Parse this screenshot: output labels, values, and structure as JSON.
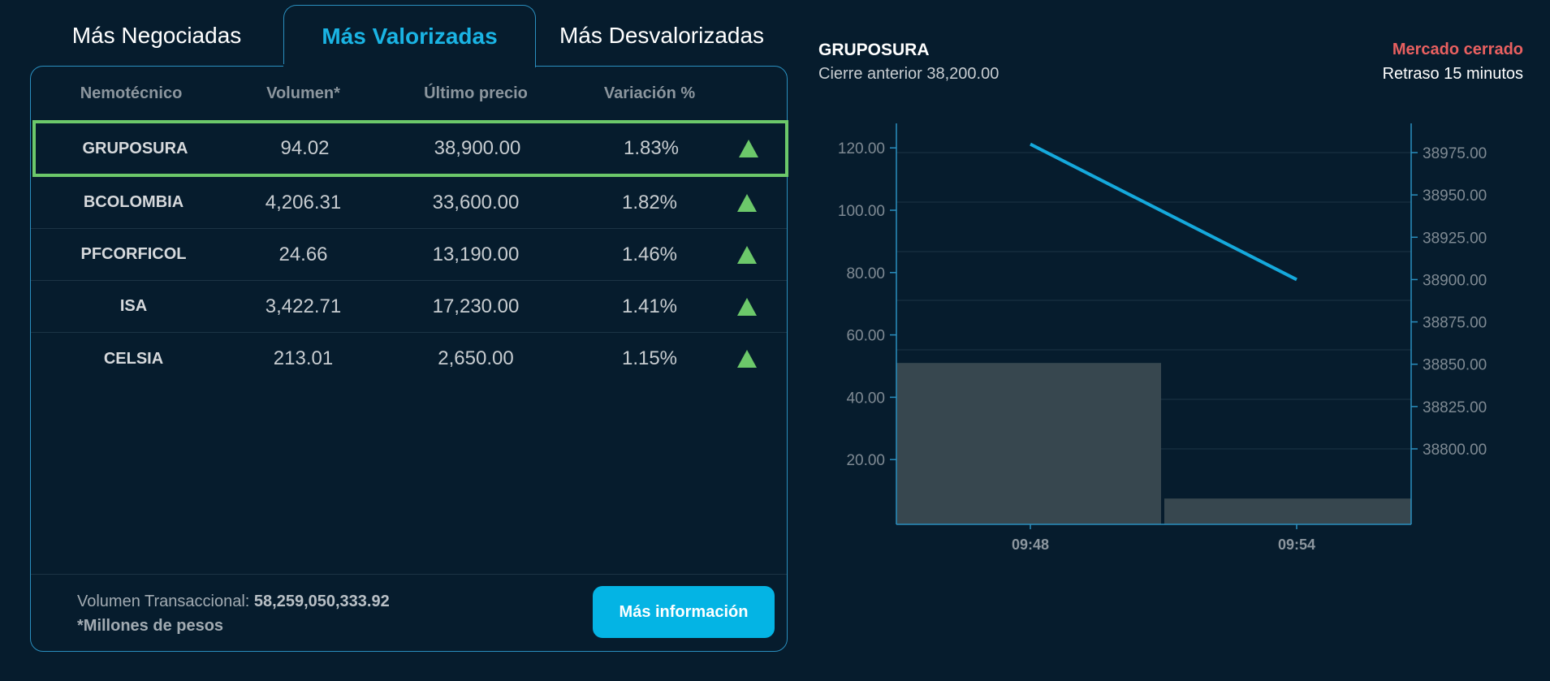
{
  "tabs": [
    {
      "label": "Más Negociadas",
      "active": false
    },
    {
      "label": "Más Valorizadas",
      "active": true
    },
    {
      "label": "Más Desvalorizadas",
      "active": false
    }
  ],
  "table": {
    "headers": [
      "Nemotécnico",
      "Volumen*",
      "Último precio",
      "Variación %"
    ],
    "rows": [
      {
        "symbol": "GRUPOSURA",
        "volume": "94.02",
        "price": "38,900.00",
        "change": "1.83%",
        "trend": "up-triangle-icon",
        "selected": true
      },
      {
        "symbol": "BCOLOMBIA",
        "volume": "4,206.31",
        "price": "33,600.00",
        "change": "1.82%",
        "trend": "up-triangle-icon",
        "selected": false
      },
      {
        "symbol": "PFCORFICOL",
        "volume": "24.66",
        "price": "13,190.00",
        "change": "1.46%",
        "trend": "up-triangle-icon",
        "selected": false
      },
      {
        "symbol": "ISA",
        "volume": "3,422.71",
        "price": "17,230.00",
        "change": "1.41%",
        "trend": "up-triangle-icon",
        "selected": false
      },
      {
        "symbol": "CELSIA",
        "volume": "213.01",
        "price": "2,650.00",
        "change": "1.15%",
        "trend": "up-triangle-icon",
        "selected": false
      }
    ]
  },
  "footer": {
    "volume_label": "Volumen Transaccional:",
    "volume_value": "58,259,050,333.92",
    "unit_note": "*Millones de pesos",
    "more_button": "Más información"
  },
  "detail": {
    "symbol": "GRUPOSURA",
    "previous_close": "Cierre anterior 38,200.00",
    "market_status": "Mercado cerrado",
    "delay": "Retraso 15 minutos"
  },
  "colors": {
    "background": "#061c2d",
    "accent": "#1ab4e4",
    "button": "#04b4e4",
    "up": "#6cc86a",
    "closed": "#e96060",
    "bar": "#37474f",
    "border": "#2a8fbf"
  },
  "chart_data": {
    "type": "bar+line",
    "title": "GRUPOSURA",
    "categories": [
      "09:48",
      "09:54"
    ],
    "series": [
      {
        "name": "Volumen",
        "type": "bar",
        "axis": "left",
        "values": [
          51,
          7.5
        ]
      },
      {
        "name": "Precio",
        "type": "line",
        "axis": "right",
        "values": [
          38980,
          38900
        ]
      }
    ],
    "left_axis": {
      "ticks": [
        "20.00",
        "40.00",
        "60.00",
        "80.00",
        "100.00",
        "120.00"
      ],
      "range": [
        0,
        128
      ]
    },
    "right_axis": {
      "ticks": [
        "38800.00",
        "38825.00",
        "38850.00",
        "38875.00",
        "38900.00",
        "38925.00",
        "38950.00",
        "38975.00"
      ],
      "range": [
        38790,
        38990
      ]
    },
    "xlabel": "",
    "ylabel": "",
    "grid": true,
    "legend": "none"
  }
}
